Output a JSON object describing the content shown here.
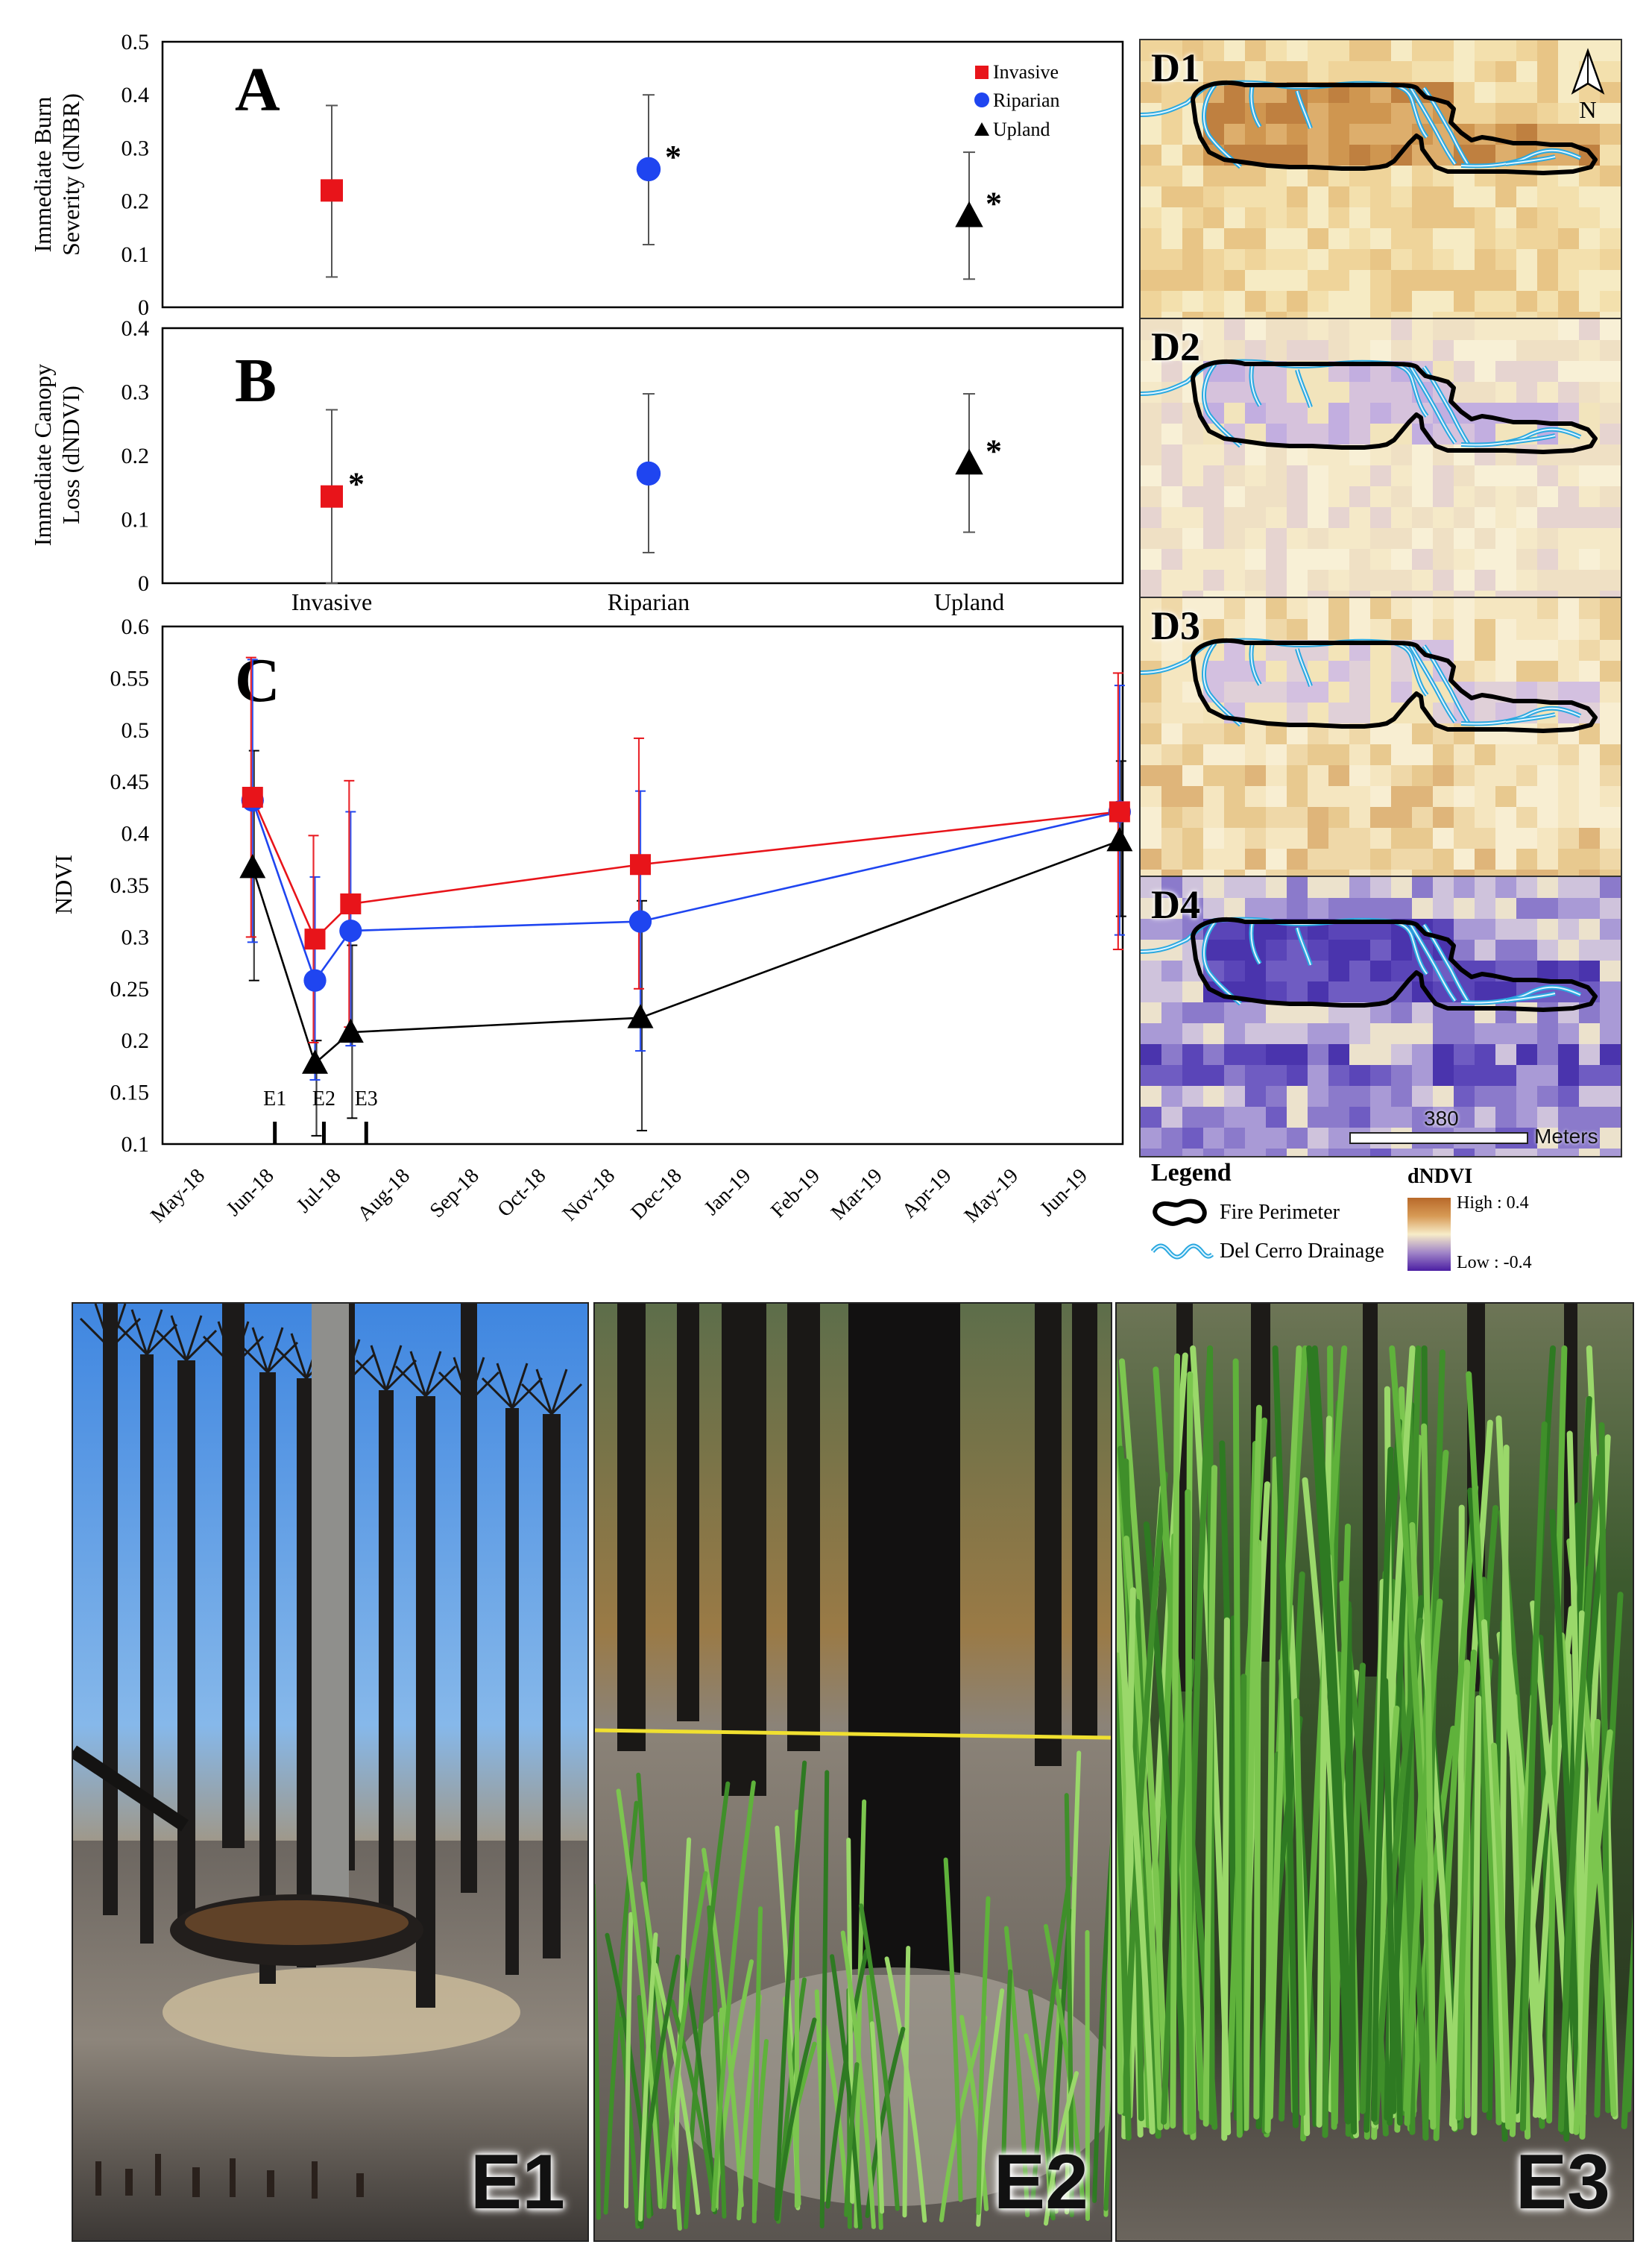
{
  "chart_data": [
    {
      "panel": "A",
      "type": "scatter",
      "panel_label": "A",
      "ylabel_lines": [
        "Immediate Burn",
        "Severity (dNBR)"
      ],
      "ylim": [
        0,
        0.5
      ],
      "yticks": [
        "0",
        "0.1",
        "0.2",
        "0.3",
        "0.4",
        "0.5"
      ],
      "categories": [
        "Invasive",
        "Riparian",
        "Upland"
      ],
      "legend": [
        {
          "name": "Invasive",
          "marker": "square",
          "color": "#e8141a"
        },
        {
          "name": "Riparian",
          "marker": "circle",
          "color": "#1f45f0"
        },
        {
          "name": "Upland",
          "marker": "triangle",
          "color": "#000000"
        }
      ],
      "points": [
        {
          "category": "Invasive",
          "value": 0.22,
          "error_low": 0.057,
          "error_high": 0.38,
          "significant": false
        },
        {
          "category": "Riparian",
          "value": 0.26,
          "error_low": 0.118,
          "error_high": 0.4,
          "significant": true
        },
        {
          "category": "Upland",
          "value": 0.172,
          "error_low": 0.053,
          "error_high": 0.292,
          "significant": true
        }
      ],
      "star": "*"
    },
    {
      "panel": "B",
      "type": "scatter",
      "panel_label": "B",
      "ylabel_lines": [
        "Immediate Canopy",
        "Loss (dNDVI)"
      ],
      "ylim": [
        0,
        0.4
      ],
      "yticks": [
        "0",
        "0.1",
        "0.2",
        "0.3",
        "0.4"
      ],
      "categories": [
        "Invasive",
        "Riparian",
        "Upland"
      ],
      "points": [
        {
          "category": "Invasive",
          "value": 0.136,
          "error_low": 0.0,
          "error_high": 0.272,
          "significant": true
        },
        {
          "category": "Riparian",
          "value": 0.172,
          "error_low": 0.048,
          "error_high": 0.297,
          "significant": false
        },
        {
          "category": "Upland",
          "value": 0.188,
          "error_low": 0.08,
          "error_high": 0.297,
          "significant": true
        }
      ],
      "star": "*"
    },
    {
      "panel": "C",
      "type": "line",
      "panel_label": "C",
      "ylabel": "NDVI",
      "ylim": [
        0.1,
        0.6
      ],
      "yticks": [
        "0.1",
        "0.15",
        "0.2",
        "0.25",
        "0.3",
        "0.35",
        "0.4",
        "0.45",
        "0.5",
        "0.55",
        "0.6"
      ],
      "xticks": [
        "May-18",
        "Jun-18",
        "Jul-18",
        "Aug-18",
        "Sep-18",
        "Oct-18",
        "Nov-18",
        "Dec-18",
        "Jan-19",
        "Feb-19",
        "Mar-19",
        "Apr-19",
        "May-19",
        "Jun-19"
      ],
      "x": [
        "2018-05-22",
        "2018-06-19",
        "2018-07-05",
        "2018-11-12",
        "2019-06-15"
      ],
      "series": [
        {
          "name": "Invasive",
          "color": "#e8141a",
          "marker": "square",
          "values": [
            0.435,
            0.298,
            0.332,
            0.37,
            0.421
          ],
          "error_low": [
            0.3,
            0.198,
            0.213,
            0.25,
            0.288
          ],
          "error_high": [
            0.57,
            0.398,
            0.451,
            0.492,
            0.555
          ]
        },
        {
          "name": "Riparian",
          "color": "#1f45f0",
          "marker": "circle",
          "values": [
            0.432,
            0.258,
            0.306,
            0.315,
            0.421
          ],
          "error_low": [
            0.295,
            0.162,
            0.195,
            0.19,
            0.302
          ],
          "error_high": [
            0.568,
            0.358,
            0.421,
            0.441,
            0.543
          ]
        },
        {
          "name": "Upland",
          "color": "#000000",
          "marker": "triangle",
          "values": [
            0.367,
            0.178,
            0.208,
            0.222,
            0.393
          ],
          "error_low": [
            0.258,
            0.108,
            0.125,
            0.113,
            0.32
          ],
          "error_high": [
            0.48,
            0.2,
            0.292,
            0.335,
            0.47
          ]
        }
      ],
      "events": [
        {
          "label": "E1",
          "date": "2018-06-01"
        },
        {
          "label": "E2",
          "date": "2018-06-23"
        },
        {
          "label": "E3",
          "date": "2018-07-12"
        }
      ]
    }
  ],
  "maps": {
    "panels": [
      {
        "label": "D1",
        "palette": "burn"
      },
      {
        "label": "D2",
        "palette": "loss"
      },
      {
        "label": "D3",
        "palette": "recovery"
      },
      {
        "label": "D4",
        "palette": "drop"
      }
    ],
    "north_label": "N",
    "scale_value": "380",
    "scale_unit": "Meters"
  },
  "legend": {
    "title": "Legend",
    "fire_perimeter": "Fire Perimeter",
    "drainage": "Del Cerro Drainage",
    "dndvi_title": "dNDVI",
    "high": "High : 0.4",
    "low": "Low : -0.4"
  },
  "photos": [
    {
      "label": "E1"
    },
    {
      "label": "E2"
    },
    {
      "label": "E3"
    }
  ]
}
